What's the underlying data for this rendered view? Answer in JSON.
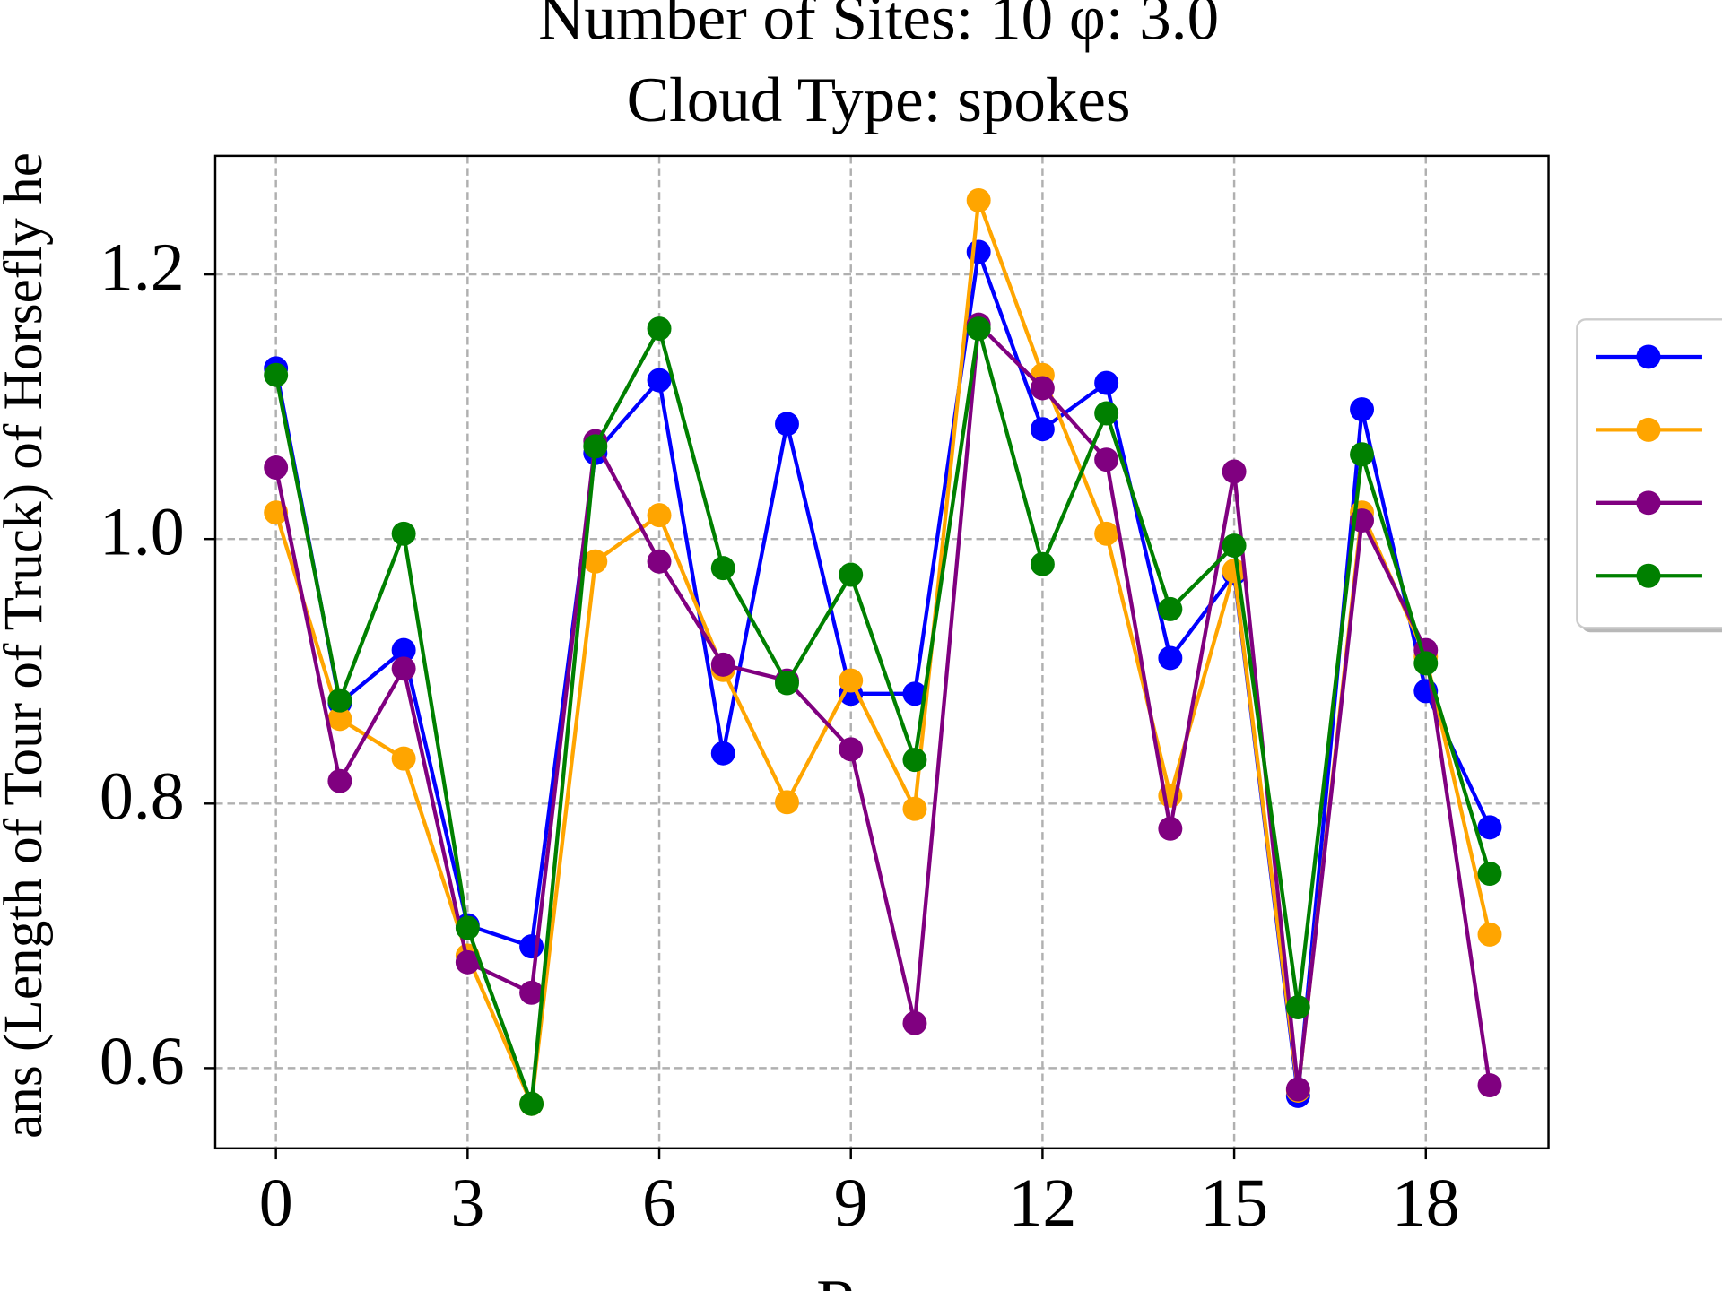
{
  "chart_data": {
    "type": "line",
    "title": [
      "Number of Sites: 10 φ: 3.0",
      "Cloud Type: spokes"
    ],
    "x_label": "Runs",
    "y_label": "ans (Length of Tour of Truck) of Horsefly he",
    "x": [
      0,
      1,
      2,
      3,
      4,
      5,
      6,
      7,
      8,
      9,
      10,
      11,
      12,
      13,
      14,
      15,
      16,
      17,
      18,
      19
    ],
    "series": [
      {
        "color": "#0000ff",
        "values": [
          1.129,
          0.876,
          0.916,
          0.708,
          0.692,
          1.065,
          1.12,
          0.838,
          1.087,
          0.883,
          0.883,
          1.217,
          1.083,
          1.118,
          0.91,
          0.974,
          0.579,
          1.098,
          0.885,
          0.782
        ]
      },
      {
        "color": "#ffa500",
        "values": [
          1.02,
          0.864,
          0.834,
          0.685,
          0.573,
          0.983,
          1.018,
          0.901,
          0.801,
          0.893,
          0.796,
          1.256,
          1.124,
          1.004,
          0.806,
          0.976,
          0.583,
          1.02,
          0.911,
          0.701
        ]
      },
      {
        "color": "#800080",
        "values": [
          1.054,
          0.817,
          0.902,
          0.68,
          0.657,
          1.074,
          0.983,
          0.905,
          0.893,
          0.841,
          0.634,
          1.162,
          1.114,
          1.06,
          0.781,
          1.051,
          0.584,
          1.014,
          0.916,
          0.587
        ]
      },
      {
        "color": "#008000",
        "values": [
          1.124,
          0.878,
          1.004,
          0.706,
          0.573,
          1.07,
          1.159,
          0.978,
          0.891,
          0.973,
          0.833,
          1.159,
          0.981,
          1.095,
          0.947,
          0.995,
          0.646,
          1.064,
          0.906,
          0.747
        ]
      }
    ],
    "xlim": [
      -0.95,
      19.92
    ],
    "xticks": [
      0,
      3,
      6,
      9,
      12,
      15,
      18
    ],
    "ylim": [
      0.5394,
      1.2896
    ],
    "yticks": [
      0.6,
      0.8,
      {
        "value": 1,
        "label": "1.0"
      },
      1.2
    ],
    "grid": true,
    "legend": "right"
  }
}
